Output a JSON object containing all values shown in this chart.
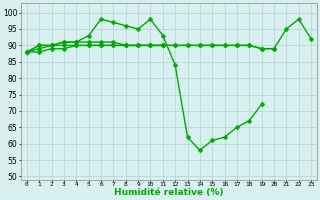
{
  "xlabel": "Humidité relative (%)",
  "x": [
    0,
    1,
    2,
    3,
    4,
    5,
    6,
    7,
    8,
    9,
    10,
    11,
    12,
    13,
    14,
    15,
    16,
    17,
    18,
    19,
    20,
    21,
    22,
    23
  ],
  "line1": [
    88,
    90,
    90,
    91,
    91,
    93,
    98,
    97,
    96,
    95,
    98,
    93,
    84,
    62,
    58,
    61,
    62,
    65,
    67,
    72,
    null,
    null,
    null,
    null
  ],
  "line2": [
    88,
    90,
    90,
    91,
    91,
    91,
    91,
    91,
    90,
    90,
    90,
    90,
    90,
    90,
    90,
    90,
    90,
    90,
    90,
    89,
    89,
    95,
    98,
    92
  ],
  "line3": [
    88,
    88,
    89,
    89,
    90,
    90,
    90,
    90,
    90,
    90,
    90,
    90,
    90,
    90,
    90,
    90,
    90,
    90,
    90,
    89,
    89,
    null,
    null,
    null
  ],
  "line4": [
    88,
    89,
    90,
    90,
    90,
    90,
    90,
    90,
    90,
    90,
    90,
    90,
    null,
    null,
    null,
    null,
    null,
    null,
    null,
    null,
    null,
    null,
    null,
    null
  ],
  "bg_color": "#d8f0f0",
  "grid_color": "#b8d8d8",
  "line_color": "#00aa00",
  "ylim": [
    49,
    103
  ],
  "yticks": [
    50,
    55,
    60,
    65,
    70,
    75,
    80,
    85,
    90,
    95,
    100
  ],
  "markersize": 2.5,
  "linewidth": 1.0
}
